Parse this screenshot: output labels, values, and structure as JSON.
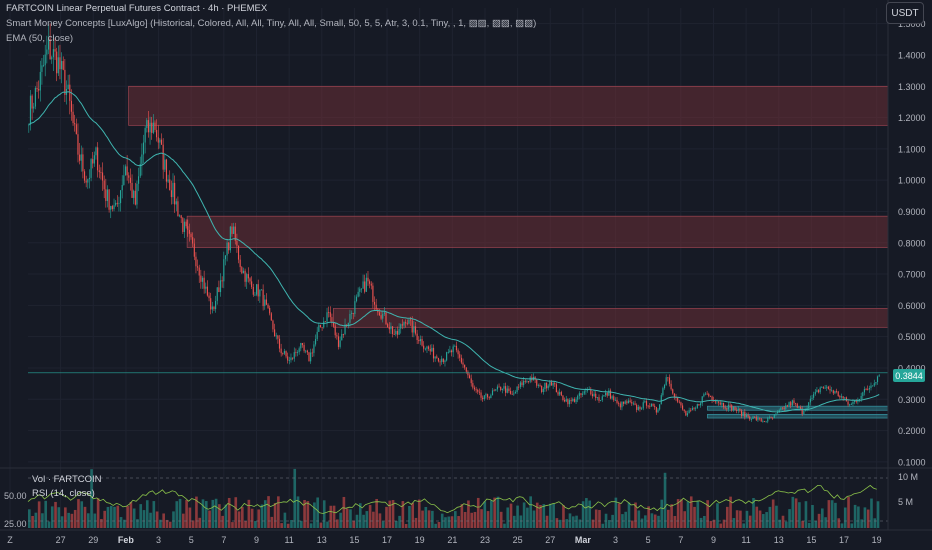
{
  "header": {
    "line1": "FARTCOIN Linear Perpetual Futures Contract · 4h · PHEMEX",
    "line2": "Smart Money Concepts [LuxAlgo] (Historical, Colored, All, All, Tiny, All, All, Small, 50, 5, 5, Atr, 3, 0.1, Tiny, , 1, ▨▨, ▨▨, ▨▨)",
    "line3": "EMA (50, close)",
    "currency": "USDT"
  },
  "volume_legend": "Vol · FARTCOIN",
  "rsi_legend": "RSI (14, close)",
  "colors": {
    "background": "#161a25",
    "up": "#26a69a",
    "down": "#ef5350",
    "ema": "#3fb5b0",
    "zone_fill": "#6b2f37",
    "zone_border": "#b04a57",
    "rsi": "#8bc34a"
  },
  "chart_data": [
    {
      "type": "candlestick",
      "title": "FARTCOIN Linear Perpetual Futures Contract · 4h · PHEMEX",
      "ylim": [
        0.09,
        1.55
      ],
      "y_ticks": [
        "1.5000",
        "1.4000",
        "1.3000",
        "1.2000",
        "1.1000",
        "1.0000",
        "0.9000",
        "0.8000",
        "0.7000",
        "0.6000",
        "0.5000",
        "0.4000",
        "0.3000",
        "0.2000",
        "0.1000"
      ],
      "x_ticks": [
        "Z",
        "27",
        "29",
        "Feb",
        "3",
        "5",
        "7",
        "9",
        "11",
        "13",
        "15",
        "17",
        "19",
        "21",
        "23",
        "25",
        "27",
        "Mar",
        "3",
        "5",
        "7",
        "9",
        "11",
        "13",
        "15",
        "17",
        "19"
      ],
      "last_price": "0.3844",
      "price_path": [
        [
          0,
          1.22
        ],
        [
          1,
          1.3
        ],
        [
          2,
          1.42
        ],
        [
          3,
          1.38
        ],
        [
          4,
          1.28
        ],
        [
          5,
          1.1
        ],
        [
          6,
          1.0
        ],
        [
          7,
          1.08
        ],
        [
          8,
          0.95
        ],
        [
          9,
          0.9
        ],
        [
          10,
          1.05
        ],
        [
          11,
          0.92
        ],
        [
          12,
          1.15
        ],
        [
          13,
          1.18
        ],
        [
          14,
          1.05
        ],
        [
          15,
          0.95
        ],
        [
          16,
          0.85
        ],
        [
          17,
          0.78
        ],
        [
          18,
          0.68
        ],
        [
          19,
          0.58
        ],
        [
          20,
          0.7
        ],
        [
          21,
          0.85
        ],
        [
          22,
          0.72
        ],
        [
          23,
          0.66
        ],
        [
          24,
          0.64
        ],
        [
          25,
          0.55
        ],
        [
          26,
          0.46
        ],
        [
          27,
          0.42
        ],
        [
          28,
          0.47
        ],
        [
          29,
          0.43
        ],
        [
          30,
          0.52
        ],
        [
          31,
          0.58
        ],
        [
          32,
          0.48
        ],
        [
          33,
          0.55
        ],
        [
          34,
          0.62
        ],
        [
          35,
          0.68
        ],
        [
          36,
          0.6
        ],
        [
          37,
          0.55
        ],
        [
          38,
          0.5
        ],
        [
          39,
          0.56
        ],
        [
          40,
          0.51
        ],
        [
          41,
          0.47
        ],
        [
          42,
          0.44
        ],
        [
          43,
          0.43
        ],
        [
          44,
          0.46
        ],
        [
          45,
          0.41
        ],
        [
          46,
          0.33
        ],
        [
          47,
          0.3
        ],
        [
          48,
          0.32
        ],
        [
          49,
          0.34
        ],
        [
          50,
          0.31
        ],
        [
          51,
          0.35
        ],
        [
          52,
          0.37
        ],
        [
          53,
          0.33
        ],
        [
          54,
          0.36
        ],
        [
          55,
          0.31
        ],
        [
          56,
          0.29
        ],
        [
          57,
          0.31
        ],
        [
          58,
          0.33
        ],
        [
          59,
          0.3
        ],
        [
          60,
          0.32
        ],
        [
          61,
          0.28
        ],
        [
          62,
          0.29
        ],
        [
          63,
          0.27
        ],
        [
          64,
          0.29
        ],
        [
          65,
          0.26
        ],
        [
          66,
          0.38
        ],
        [
          67,
          0.3
        ],
        [
          68,
          0.25
        ],
        [
          69,
          0.27
        ],
        [
          70,
          0.32
        ],
        [
          71,
          0.3
        ],
        [
          72,
          0.28
        ],
        [
          73,
          0.27
        ],
        [
          74,
          0.25
        ],
        [
          75,
          0.24
        ],
        [
          76,
          0.23
        ],
        [
          77,
          0.24
        ],
        [
          78,
          0.27
        ],
        [
          79,
          0.29
        ],
        [
          80,
          0.26
        ],
        [
          81,
          0.3
        ],
        [
          82,
          0.34
        ],
        [
          83,
          0.33
        ],
        [
          84,
          0.31
        ],
        [
          85,
          0.28
        ],
        [
          86,
          0.31
        ],
        [
          87,
          0.34
        ],
        [
          88,
          0.38
        ]
      ],
      "zones": [
        {
          "name": "bearish order block 1",
          "from": 0.117,
          "to": 1.0,
          "top": 1.3,
          "bottom": 1.175
        },
        {
          "name": "bearish order block 2",
          "from": 0.185,
          "to": 1.0,
          "top": 0.885,
          "bottom": 0.785
        },
        {
          "name": "bearish order block 3",
          "from": 0.355,
          "to": 1.0,
          "top": 0.59,
          "bottom": 0.53
        },
        {
          "name": "bullish block",
          "from": 0.79,
          "to": 1.0,
          "top": 0.278,
          "bottom": 0.265
        },
        {
          "name": "bullish block",
          "from": 0.79,
          "to": 1.0,
          "top": 0.252,
          "bottom": 0.24
        }
      ],
      "series": [
        {
          "name": "EMA (50, close)",
          "kind": "line"
        }
      ]
    },
    {
      "type": "bar",
      "title": "Vol · FARTCOIN",
      "y_ticks": [
        "10 M",
        "5 M"
      ]
    },
    {
      "type": "line",
      "title": "RSI (14, close)",
      "y_ticks": [
        "50.00",
        "25.00"
      ]
    }
  ]
}
